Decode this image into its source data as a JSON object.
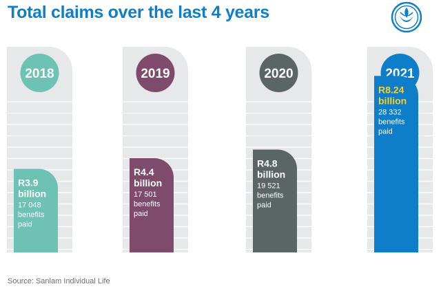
{
  "title": "Total claims over the last 4 years",
  "source": "Source: Sanlam Individual Life",
  "logo": {
    "icon": "sanlam-logo-icon",
    "color": "#0e7ecb"
  },
  "chart_data": {
    "type": "bar",
    "title": "Total claims over the last 4 years",
    "categories": [
      "2018",
      "2019",
      "2020",
      "2021"
    ],
    "values": [
      3.9,
      4.4,
      4.8,
      8.24
    ],
    "unit": "R billion",
    "ylim": [
      0,
      9.6
    ],
    "grid": true,
    "bars": [
      {
        "year": "2018",
        "amount": "R3.9",
        "unit_label": "billion",
        "count": "17 048",
        "label_1": "benefits",
        "label_2": "paid",
        "color": "#6dc2b3",
        "amount_color": "#ffffff"
      },
      {
        "year": "2019",
        "amount": "R4.4",
        "unit_label": "billion",
        "count": "17 501",
        "label_1": "benefits",
        "label_2": "paid",
        "color": "#7e4b6c",
        "amount_color": "#ffffff"
      },
      {
        "year": "2020",
        "amount": "R4.8",
        "unit_label": "billion",
        "count": "19 521",
        "label_1": "benefits",
        "label_2": "paid",
        "color": "#596664",
        "amount_color": "#ffffff"
      },
      {
        "year": "2021",
        "amount": "R8.24",
        "unit_label": "billion",
        "count": "28 332",
        "label_1": "benefits",
        "label_2": "paid",
        "color": "#0e7ecb",
        "amount_color": "#f5cf2f"
      }
    ]
  }
}
